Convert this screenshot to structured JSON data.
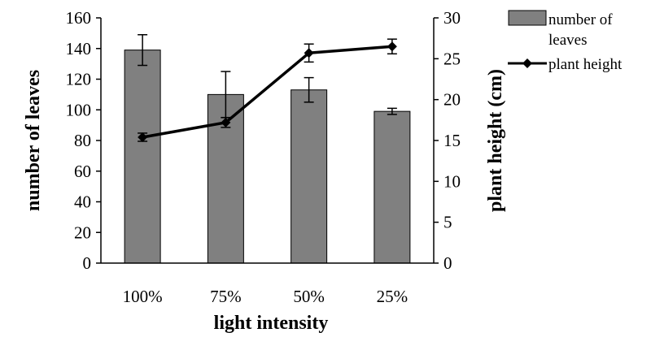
{
  "chart_data": {
    "type": "bar",
    "categories": [
      "100%",
      "75%",
      "50%",
      "25%"
    ],
    "series": [
      {
        "name": "number of leaves",
        "type": "bar",
        "axis": "left",
        "values": [
          139,
          110,
          113,
          99
        ],
        "error": [
          10,
          15,
          8,
          2
        ],
        "color": "#808080"
      },
      {
        "name": "plant height",
        "type": "line",
        "axis": "right",
        "values": [
          15.4,
          17.2,
          25.7,
          26.5
        ],
        "error": [
          0.5,
          0.6,
          1.1,
          0.9
        ],
        "color": "#000000"
      }
    ],
    "xlabel": "light intensity",
    "ylabel": "number of leaves",
    "y2label": "plant height (cm)",
    "ylim": [
      0,
      160
    ],
    "y2lim": [
      0,
      30
    ],
    "yticks": [
      "0",
      "20",
      "40",
      "60",
      "80",
      "100",
      "120",
      "140",
      "160"
    ],
    "y2ticks": [
      "0",
      "5",
      "10",
      "15",
      "20",
      "25",
      "30"
    ],
    "legend": {
      "position": "top-right",
      "bar_label_lines": [
        "number of",
        "leaves"
      ],
      "line_label": "plant height"
    },
    "grid": false
  }
}
